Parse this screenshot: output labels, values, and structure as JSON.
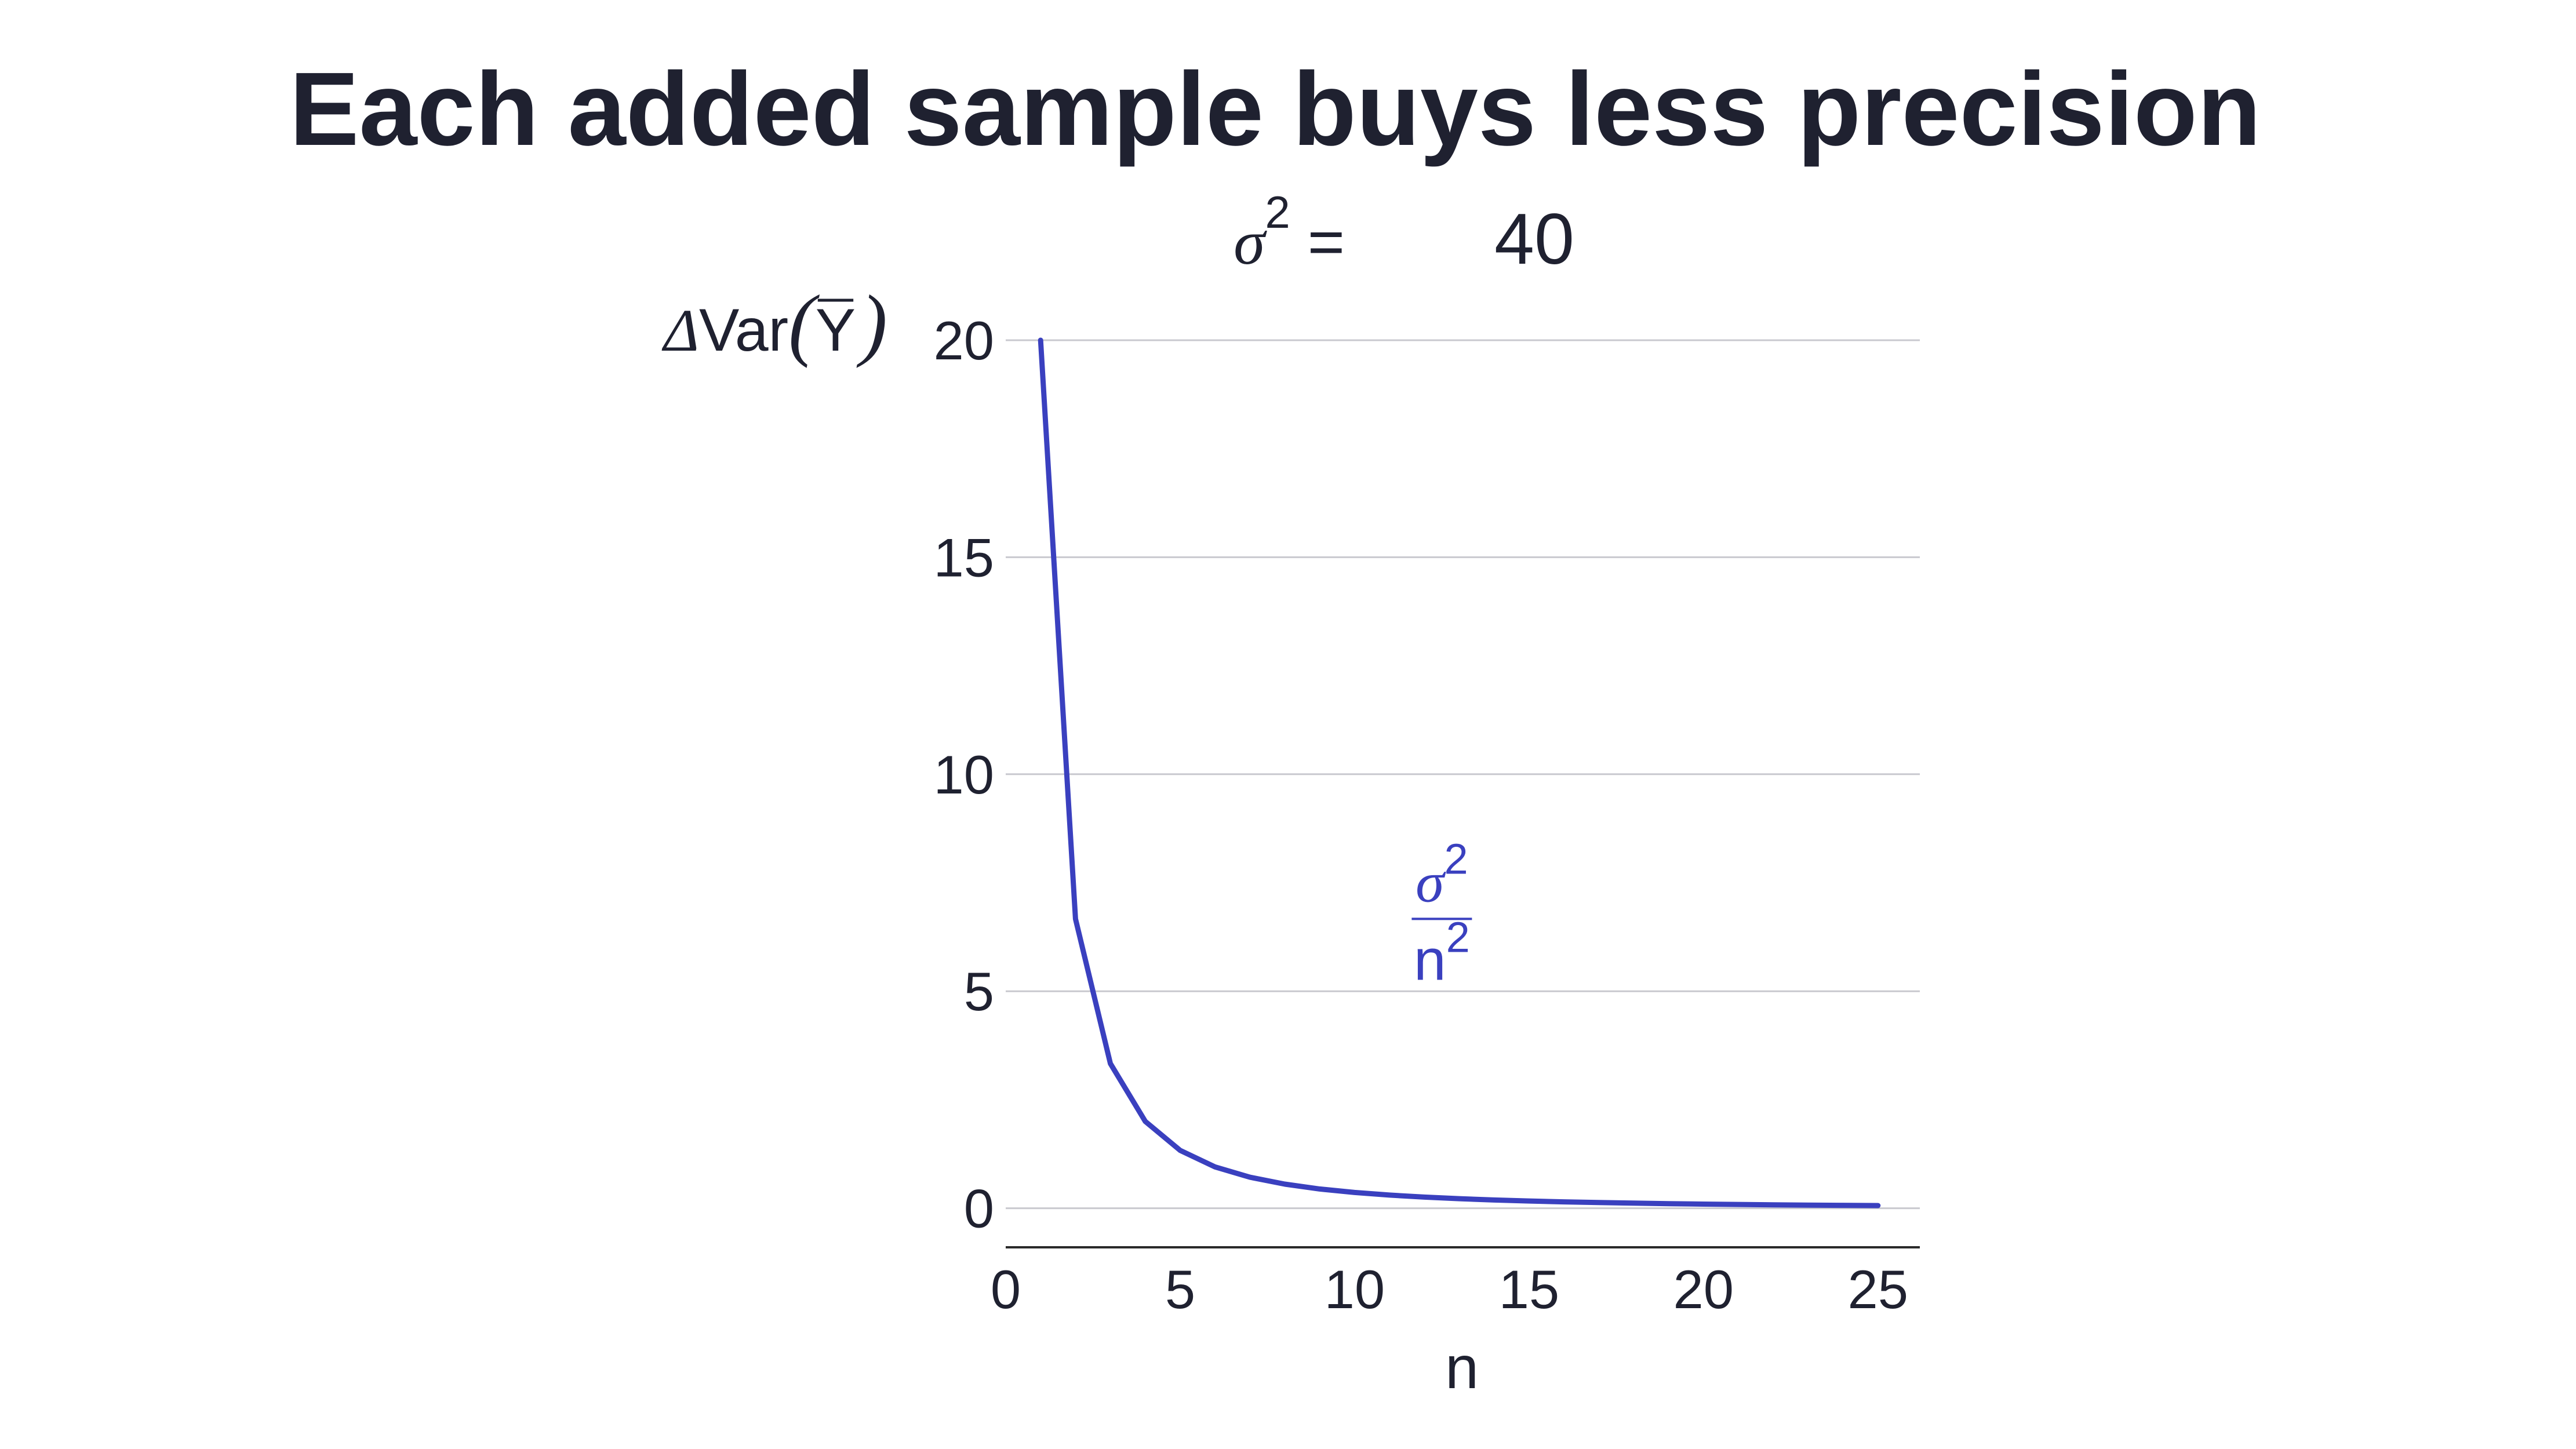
{
  "chart_data": {
    "type": "line",
    "title": "Each added sample buys less precision",
    "subtitle": {
      "symbol": "σ",
      "exponent": "2",
      "equals": "=",
      "value": "40"
    },
    "ylabel": {
      "prefix": "Δ",
      "text": "Var",
      "open_paren": "(",
      "bar_symbol": "Y",
      "close_paren": ")"
    },
    "xlabel": "n",
    "xlim": [
      0,
      26.2
    ],
    "ylim": [
      -0.9,
      20
    ],
    "xticks": [
      0,
      5,
      10,
      15,
      20,
      25
    ],
    "yticks": [
      0,
      5,
      10,
      15,
      20
    ],
    "grid": true,
    "series": [
      {
        "color": "#3a40bf",
        "x": [
          1,
          2,
          3,
          4,
          5,
          6,
          7,
          8,
          9,
          10,
          11,
          12,
          13,
          14,
          15,
          16,
          17,
          18,
          19,
          20,
          21,
          22,
          23,
          24,
          25
        ],
        "y": [
          20,
          6.667,
          3.333,
          2,
          1.333,
          0.952,
          0.714,
          0.556,
          0.444,
          0.364,
          0.303,
          0.256,
          0.22,
          0.19,
          0.167,
          0.147,
          0.131,
          0.117,
          0.105,
          0.095,
          0.087,
          0.079,
          0.072,
          0.067,
          0.062
        ]
      }
    ],
    "annotation": {
      "numerator_symbol": "σ",
      "numerator_exponent": "2",
      "denominator_base": "n",
      "denominator_exponent": "2",
      "color": "#3a40bf",
      "x": 12.5,
      "y": 6.8
    }
  }
}
